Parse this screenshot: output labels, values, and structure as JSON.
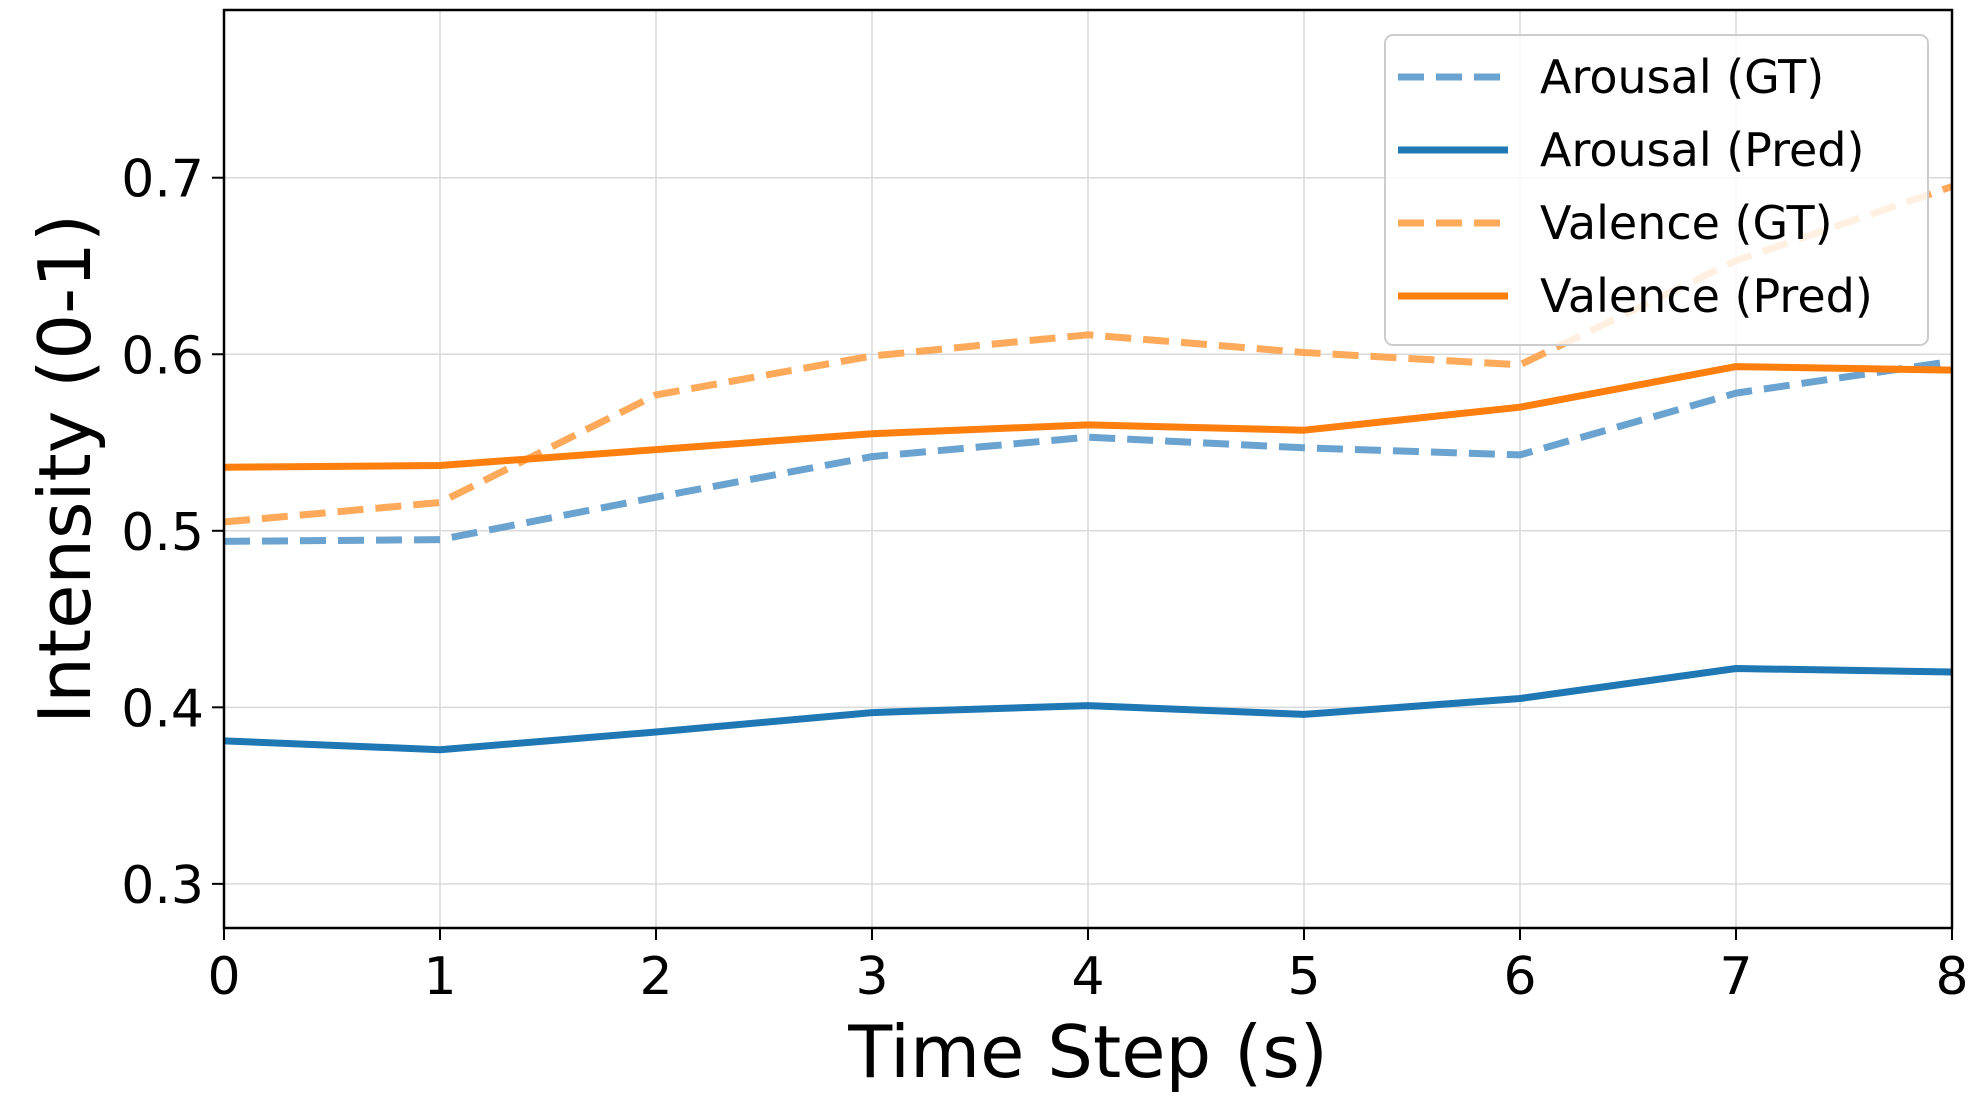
{
  "chart_data": {
    "type": "line",
    "title": "",
    "xlabel": "Time Step (s)",
    "ylabel": "Intensity (0-1)",
    "xlim": [
      0,
      8
    ],
    "ylim": [
      0.275,
      0.795
    ],
    "x_ticks": [
      "0",
      "1",
      "2",
      "3",
      "4",
      "5",
      "6",
      "7",
      "8"
    ],
    "y_ticks": [
      "0.3",
      "0.4",
      "0.5",
      "0.6",
      "0.7"
    ],
    "grid": true,
    "legend_position": "top-right",
    "x": [
      0,
      1,
      2,
      3,
      4,
      5,
      6,
      7,
      8
    ],
    "series": [
      {
        "name": "Arousal (GT)",
        "color": "#6aa3d0",
        "style": "dashed",
        "values": [
          0.494,
          0.495,
          0.519,
          0.542,
          0.553,
          0.547,
          0.543,
          0.578,
          0.596
        ]
      },
      {
        "name": "Arousal (Pred)",
        "color": "#1f77b4",
        "style": "solid",
        "values": [
          0.381,
          0.376,
          0.386,
          0.397,
          0.401,
          0.396,
          0.405,
          0.422,
          0.42
        ]
      },
      {
        "name": "Valence (GT)",
        "color": "#ffa95a",
        "style": "dashed",
        "values": [
          0.505,
          0.516,
          0.577,
          0.599,
          0.611,
          0.601,
          0.594,
          0.653,
          0.695
        ]
      },
      {
        "name": "Valence (Pred)",
        "color": "#ff7f0e",
        "style": "solid",
        "values": [
          0.536,
          0.537,
          0.546,
          0.555,
          0.56,
          0.557,
          0.57,
          0.593,
          0.591
        ]
      }
    ]
  }
}
